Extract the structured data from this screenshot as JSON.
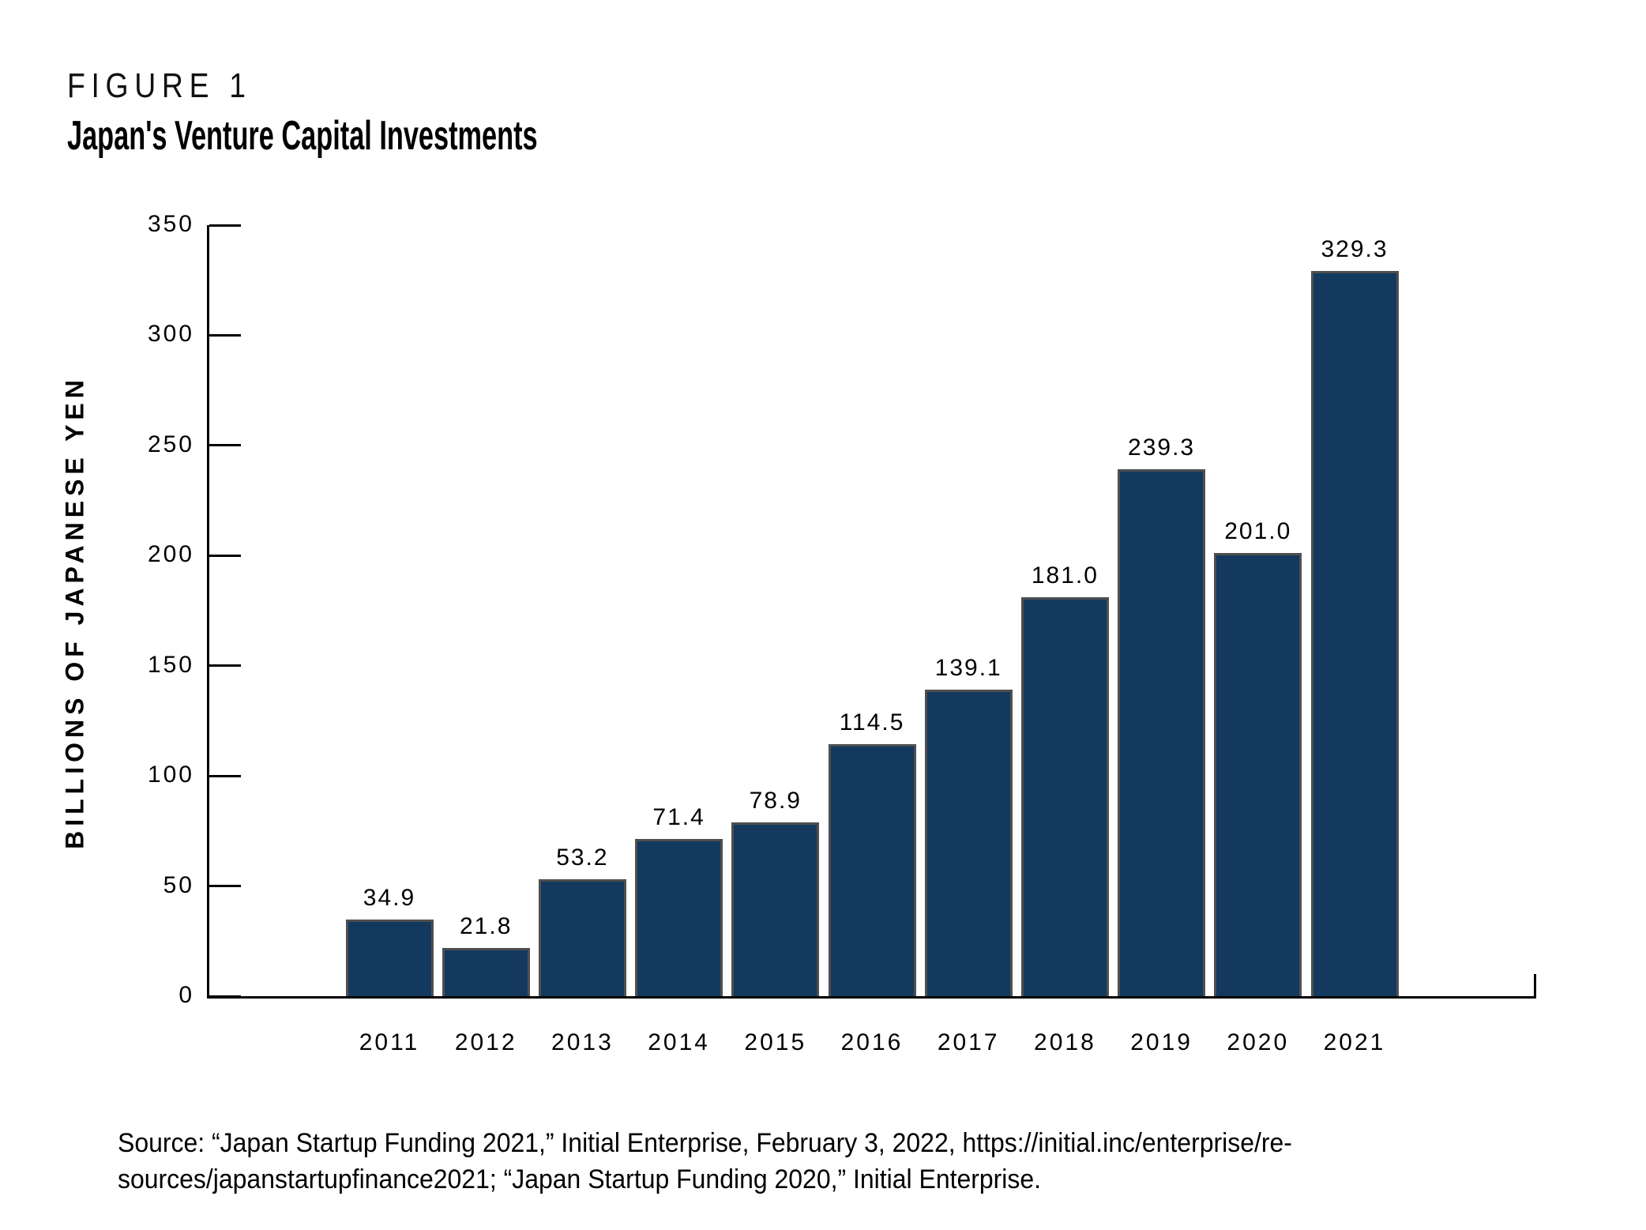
{
  "figure": {
    "label": "FIGURE 1",
    "title": "Japan's Venture Capital Investments"
  },
  "chart_data": {
    "type": "bar",
    "title": "Japan's Venture Capital Investments",
    "categories": [
      "2011",
      "2012",
      "2013",
      "2014",
      "2015",
      "2016",
      "2017",
      "2018",
      "2019",
      "2020",
      "2021"
    ],
    "values": [
      34.9,
      21.8,
      53.2,
      71.4,
      78.9,
      114.5,
      139.1,
      181.0,
      239.3,
      201.0,
      329.3
    ],
    "value_labels": [
      "34.9",
      "21.8",
      "53.2",
      "71.4",
      "78.9",
      "114.5",
      "139.1",
      "181.0",
      "239.3",
      "201.0",
      "329.3"
    ],
    "xlabel": "",
    "ylabel": "BILLIONS OF JAPANESE YEN",
    "ylim": [
      0,
      350
    ],
    "yticks": [
      0,
      50,
      100,
      150,
      200,
      250,
      300,
      350
    ],
    "grid": false,
    "legend": "none",
    "bar_color": "#14395E",
    "bar_border_color": "#4F4F4F",
    "axis_color": "#000000",
    "label_color": "#000000"
  },
  "source": {
    "line1": "Source: “Japan Startup Funding 2021,” Initial Enterprise, February 3, 2022, https://initial.inc/enterprise/re-",
    "line2": "sources/japanstartupfinance2021; “Japan Startup Funding 2020,” Initial Enterprise."
  }
}
